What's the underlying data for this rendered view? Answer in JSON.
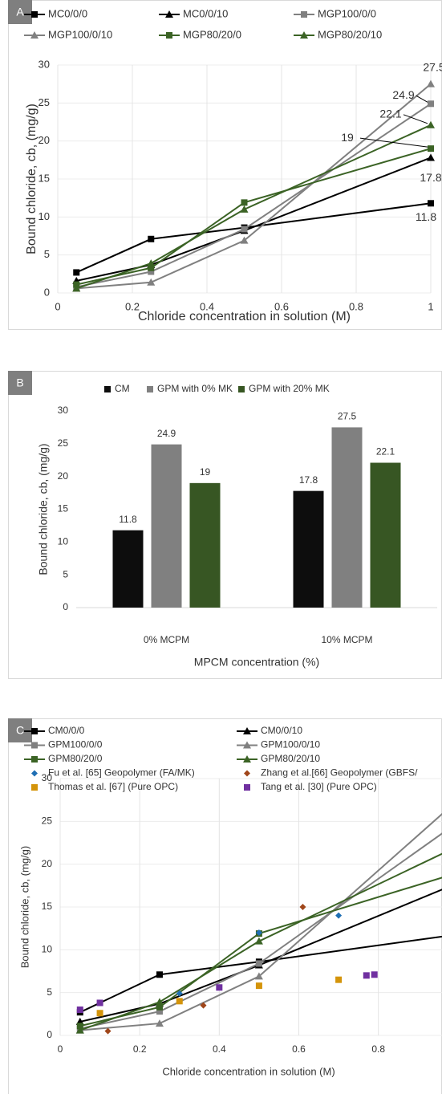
{
  "chart_data": [
    {
      "label": "A",
      "type": "line",
      "x": [
        0.05,
        0.25,
        0.5,
        1
      ],
      "xlim": [
        0,
        1
      ],
      "xticks": [
        0,
        0.2,
        0.4,
        0.6,
        0.8,
        1
      ],
      "ylim": [
        0,
        30
      ],
      "yticks": [
        0,
        5,
        10,
        15,
        20,
        25,
        30
      ],
      "grid": true,
      "last_point_labels": true,
      "x_label": "Chloride concentration in solution (M)",
      "y_label": "Bound chloride, cb, (mg/g)",
      "series": [
        {
          "name": "MC0/0/0",
          "color": "#000000",
          "marker": "square",
          "values": [
            2.7,
            7.1,
            8.6,
            11.8
          ]
        },
        {
          "name": "MC0/0/10",
          "color": "#000000",
          "marker": "triangle",
          "values": [
            1.6,
            3.7,
            8.2,
            17.8
          ]
        },
        {
          "name": "MGP100/0/0",
          "color": "#808080",
          "marker": "square",
          "values": [
            0.8,
            2.8,
            8.4,
            24.9
          ]
        },
        {
          "name": "MGP100/0/10",
          "color": "#808080",
          "marker": "triangle",
          "values": [
            0.6,
            1.4,
            6.9,
            27.5
          ]
        },
        {
          "name": "MGP80/20/0",
          "color": "#3b6325",
          "marker": "square",
          "values": [
            1.1,
            3.3,
            11.9,
            19
          ]
        },
        {
          "name": "MGP80/20/10",
          "color": "#3b6325",
          "marker": "triangle",
          "values": [
            0.6,
            3.9,
            11.0,
            22.1
          ]
        }
      ]
    },
    {
      "label": "B",
      "type": "bar",
      "categories": [
        "0% MCPM",
        "10% MCPM"
      ],
      "ylim": [
        0,
        30
      ],
      "yticks": [
        0,
        5,
        10,
        15,
        20,
        25,
        30
      ],
      "grid": false,
      "data_labels": true,
      "x_label": "MPCM concentration (%)",
      "y_label": "Bound chloride, cb, (mg/g)",
      "series": [
        {
          "name": "CM",
          "color": "#0d0d0d",
          "values": [
            11.8,
            17.8
          ]
        },
        {
          "name": "GPM with 0% MK",
          "color": "#808080",
          "values": [
            24.9,
            27.5
          ]
        },
        {
          "name": "GPM with 20% MK",
          "color": "#375623",
          "values": [
            19,
            22.1
          ]
        }
      ]
    },
    {
      "label": "C",
      "type": "line",
      "x": [
        0.05,
        0.25,
        0.5,
        1
      ],
      "xlim": [
        0,
        0.96
      ],
      "xticks": [
        0,
        0.2,
        0.4,
        0.6,
        0.8
      ],
      "ylim": [
        0,
        30
      ],
      "yticks": [
        0,
        5,
        10,
        15,
        20,
        25,
        30
      ],
      "grid": true,
      "x_label": "Chloride concentration in solution (M)",
      "y_label": "Bound chloride, cb, (mg/g)",
      "series": [
        {
          "name": "CM0/0/0",
          "color": "#000000",
          "marker": "square",
          "values": [
            2.7,
            7.1,
            8.6,
            11.8
          ]
        },
        {
          "name": "CM0/0/10",
          "color": "#000000",
          "marker": "triangle",
          "values": [
            1.6,
            3.7,
            8.2,
            17.8
          ]
        },
        {
          "name": "GPM100/0/0",
          "color": "#808080",
          "marker": "square",
          "values": [
            0.8,
            2.8,
            8.4,
            24.9
          ]
        },
        {
          "name": "GPM100/0/10",
          "color": "#808080",
          "marker": "triangle",
          "values": [
            0.6,
            1.4,
            6.9,
            27.5
          ]
        },
        {
          "name": "GPM80/20/0",
          "color": "#3b6325",
          "marker": "square",
          "values": [
            1.1,
            3.3,
            11.9,
            19
          ]
        },
        {
          "name": "GPM80/20/10",
          "color": "#3b6325",
          "marker": "triangle",
          "values": [
            0.6,
            3.9,
            11.0,
            22.1
          ]
        },
        {
          "name": "Fu et al. [65] Geopolymer (FA/MK)",
          "type": "scatter",
          "color": "#1f6fb4",
          "marker": "diamond",
          "x": [
            0.3,
            0.5,
            0.7
          ],
          "values": [
            4.9,
            12,
            14
          ]
        },
        {
          "name": "Zhang et al.[66] Geopolymer (GBFS/",
          "type": "scatter",
          "color": "#a0461a",
          "marker": "diamond",
          "x": [
            0.12,
            0.36,
            0.61
          ],
          "values": [
            0.5,
            3.5,
            15
          ]
        },
        {
          "name": "Thomas et al. [67] (Pure OPC)",
          "type": "scatter",
          "color": "#d4940a",
          "marker": "square",
          "x": [
            0.1,
            0.3,
            0.5,
            0.7
          ],
          "values": [
            2.6,
            4.0,
            5.8,
            6.5
          ]
        },
        {
          "name": "Tang et al. [30] (Pure OPC)",
          "type": "scatter",
          "color": "#7030a0",
          "marker": "square",
          "x": [
            0.05,
            0.1,
            0.4,
            0.77,
            0.79
          ],
          "values": [
            3.0,
            3.8,
            5.6,
            7.0,
            7.1
          ]
        }
      ]
    }
  ]
}
